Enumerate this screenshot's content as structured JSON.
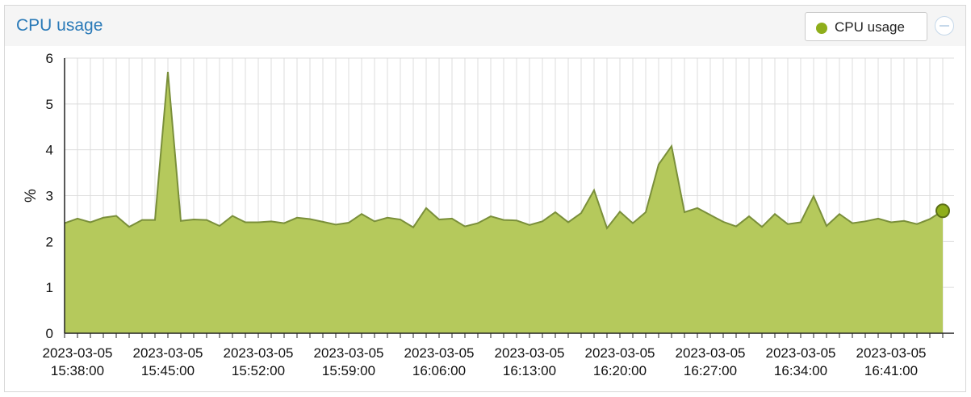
{
  "panel": {
    "title": "CPU usage",
    "legend_label": "CPU usage",
    "collapse_icon": "minus-circle-icon"
  },
  "colors": {
    "title": "#2a7ab8",
    "fill": "#b5c95c",
    "line": "#7a8f3a",
    "marker": "#8fae1b",
    "grid": "#dcdcdc"
  },
  "chart_data": {
    "type": "area",
    "title": "",
    "xlabel": "",
    "ylabel": "%",
    "ylim": [
      0,
      6
    ],
    "yticks": [
      0,
      1,
      2,
      3,
      4,
      5,
      6
    ],
    "grid": true,
    "legend": "top-right",
    "x_tick_labels": [
      [
        "2023-03-05",
        "15:38:00"
      ],
      [
        "2023-03-05",
        "15:45:00"
      ],
      [
        "2023-03-05",
        "15:52:00"
      ],
      [
        "2023-03-05",
        "15:59:00"
      ],
      [
        "2023-03-05",
        "16:06:00"
      ],
      [
        "2023-03-05",
        "16:13:00"
      ],
      [
        "2023-03-05",
        "16:20:00"
      ],
      [
        "2023-03-05",
        "16:27:00"
      ],
      [
        "2023-03-05",
        "16:34:00"
      ],
      [
        "2023-03-05",
        "16:41:00"
      ]
    ],
    "series": [
      {
        "name": "CPU usage",
        "x_start": "2023-03-05 15:37:00",
        "x_step_minutes": 1,
        "values": [
          2.4,
          2.5,
          2.42,
          2.52,
          2.56,
          2.32,
          2.47,
          2.47,
          5.7,
          2.45,
          2.48,
          2.47,
          2.34,
          2.56,
          2.42,
          2.42,
          2.44,
          2.4,
          2.52,
          2.49,
          2.43,
          2.37,
          2.41,
          2.6,
          2.44,
          2.52,
          2.48,
          2.31,
          2.73,
          2.48,
          2.5,
          2.33,
          2.4,
          2.55,
          2.47,
          2.46,
          2.36,
          2.44,
          2.64,
          2.42,
          2.62,
          3.12,
          2.29,
          2.65,
          2.4,
          2.64,
          3.68,
          4.08,
          2.64,
          2.73,
          2.58,
          2.43,
          2.33,
          2.55,
          2.32,
          2.6,
          2.38,
          2.42,
          2.99,
          2.34,
          2.6,
          2.4,
          2.44,
          2.5,
          2.42,
          2.45,
          2.38,
          2.49,
          2.67
        ]
      }
    ]
  }
}
